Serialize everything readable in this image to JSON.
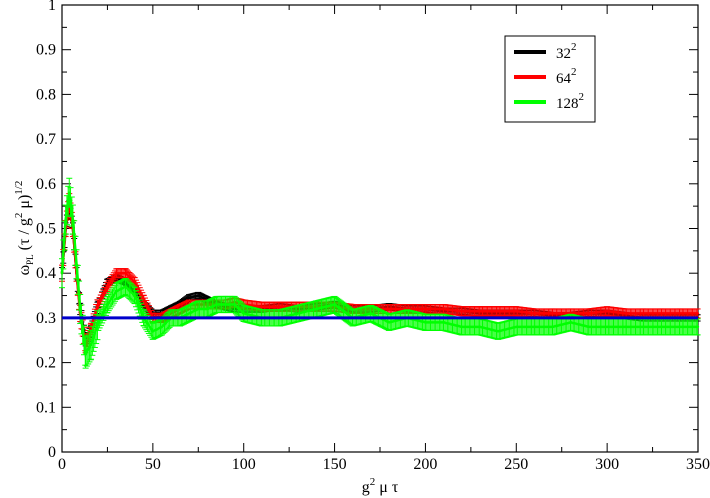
{
  "chart_data": {
    "type": "line",
    "title": "",
    "xlabel": "g^2 μ τ",
    "ylabel": "ω_PL (τ / g^2 μ)^1/2",
    "xlim": [
      0,
      350
    ],
    "ylim": [
      0,
      1
    ],
    "xticks": [
      0,
      50,
      100,
      150,
      200,
      250,
      300,
      350
    ],
    "yticks": [
      0,
      0.1,
      0.2,
      0.3,
      0.4,
      0.5,
      0.6,
      0.7,
      0.8,
      0.9,
      1
    ],
    "xtick_labels": [
      "0",
      "50",
      "100",
      "150",
      "200",
      "250",
      "300",
      "350"
    ],
    "ytick_labels": [
      "0",
      "0.1",
      "0.2",
      "0.3",
      "0.4",
      "0.5",
      "0.6",
      "0.7",
      "0.8",
      "0.9",
      "1"
    ],
    "grid": false,
    "legend_position": "top-right",
    "reference_line": {
      "y": 0.3,
      "color": "#0000cc"
    },
    "series": [
      {
        "name": "32^2",
        "legend_base": "32",
        "legend_exp": "2",
        "color": "#000000",
        "x": [
          0,
          2,
          4,
          6,
          8,
          10,
          13,
          16,
          20,
          25,
          30,
          35,
          40,
          45,
          50,
          55,
          60,
          65,
          70,
          75,
          80,
          85,
          90,
          95,
          100,
          110,
          120,
          130,
          140,
          150,
          160,
          170,
          180,
          190,
          200,
          210,
          220,
          230,
          240,
          250,
          260,
          270,
          280,
          290,
          300,
          310,
          320,
          330,
          340,
          350
        ],
        "y": [
          0.4,
          0.5,
          0.55,
          0.5,
          0.4,
          0.32,
          0.25,
          0.27,
          0.33,
          0.38,
          0.39,
          0.38,
          0.36,
          0.33,
          0.31,
          0.31,
          0.32,
          0.33,
          0.345,
          0.35,
          0.34,
          0.33,
          0.325,
          0.32,
          0.32,
          0.32,
          0.325,
          0.32,
          0.325,
          0.33,
          0.32,
          0.32,
          0.325,
          0.32,
          0.32,
          0.315,
          0.315,
          0.31,
          0.31,
          0.31,
          0.31,
          0.305,
          0.305,
          0.31,
          0.31,
          0.305,
          0.3,
          0.3,
          0.3,
          0.3
        ],
        "err": 0.007
      },
      {
        "name": "64^2",
        "legend_base": "64",
        "legend_exp": "2",
        "color": "#ff0000",
        "x": [
          0,
          2,
          4,
          6,
          8,
          10,
          13,
          16,
          20,
          25,
          30,
          35,
          40,
          45,
          50,
          55,
          60,
          65,
          70,
          75,
          80,
          85,
          90,
          95,
          100,
          110,
          120,
          130,
          140,
          150,
          160,
          170,
          180,
          190,
          200,
          210,
          220,
          230,
          240,
          250,
          260,
          270,
          280,
          290,
          300,
          310,
          320,
          330,
          340,
          350
        ],
        "y": [
          0.4,
          0.5,
          0.56,
          0.5,
          0.4,
          0.31,
          0.24,
          0.27,
          0.33,
          0.37,
          0.4,
          0.4,
          0.38,
          0.34,
          0.3,
          0.3,
          0.31,
          0.32,
          0.33,
          0.33,
          0.33,
          0.33,
          0.33,
          0.335,
          0.33,
          0.325,
          0.325,
          0.325,
          0.325,
          0.325,
          0.32,
          0.32,
          0.32,
          0.32,
          0.32,
          0.32,
          0.315,
          0.315,
          0.315,
          0.315,
          0.31,
          0.31,
          0.31,
          0.31,
          0.315,
          0.31,
          0.31,
          0.31,
          0.31,
          0.31
        ],
        "err": 0.01
      },
      {
        "name": "128^2",
        "legend_base": "128",
        "legend_exp": "2",
        "color": "#00ff00",
        "x": [
          0,
          2,
          4,
          6,
          8,
          10,
          13,
          16,
          20,
          25,
          30,
          35,
          40,
          45,
          50,
          55,
          60,
          65,
          70,
          75,
          80,
          85,
          90,
          95,
          100,
          110,
          120,
          130,
          140,
          150,
          160,
          170,
          180,
          190,
          200,
          210,
          220,
          230,
          240,
          250,
          260,
          270,
          280,
          290,
          300,
          310,
          320,
          330,
          340,
          350
        ],
        "y": [
          0.4,
          0.52,
          0.58,
          0.52,
          0.42,
          0.32,
          0.22,
          0.24,
          0.29,
          0.33,
          0.36,
          0.37,
          0.35,
          0.3,
          0.27,
          0.28,
          0.3,
          0.3,
          0.31,
          0.32,
          0.32,
          0.33,
          0.33,
          0.33,
          0.31,
          0.3,
          0.3,
          0.31,
          0.32,
          0.33,
          0.3,
          0.31,
          0.29,
          0.3,
          0.29,
          0.29,
          0.28,
          0.28,
          0.27,
          0.28,
          0.28,
          0.28,
          0.29,
          0.28,
          0.28,
          0.28,
          0.28,
          0.28,
          0.28,
          0.28
        ],
        "err": 0.018
      }
    ]
  }
}
